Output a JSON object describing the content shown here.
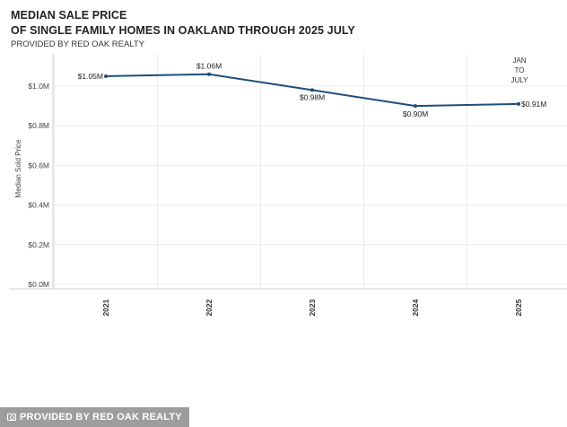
{
  "header": {
    "title_line1": "MEDIAN SALE PRICE",
    "title_line2": "OF SINGLE FAMILY HOMES IN OAKLAND THROUGH 2025 JULY",
    "subtitle": "PROVIDED BY RED OAK REALTY"
  },
  "watermark": {
    "label": "PROVIDED BY RED OAK REALTY"
  },
  "chart_data": {
    "type": "line",
    "title": "MEDIAN SALE PRICE OF SINGLE FAMILY HOMES IN OAKLAND THROUGH 2025 JULY",
    "subtitle": "PROVIDED BY RED OAK REALTY",
    "xlabel": "",
    "ylabel": "Median Sold Price",
    "categories": [
      "2021",
      "2022",
      "2023",
      "2024",
      "2025"
    ],
    "values": [
      1.05,
      1.06,
      0.98,
      0.9,
      0.91
    ],
    "data_labels": [
      "$1.05M",
      "$1.06M",
      "$0.98M",
      "$0.90M",
      "$0.91M"
    ],
    "annotation": [
      "JAN",
      "TO",
      "JULY"
    ],
    "ylim": [
      0,
      1.1
    ],
    "yticks": [
      0,
      0.2,
      0.4,
      0.6,
      0.8,
      1.0
    ],
    "ytick_labels": [
      "$0.0M",
      "$0.2M",
      "$0.4M",
      "$0.6M",
      "$0.8M",
      "$1.0M"
    ],
    "grid": true,
    "line_color": "#1f4e79"
  }
}
